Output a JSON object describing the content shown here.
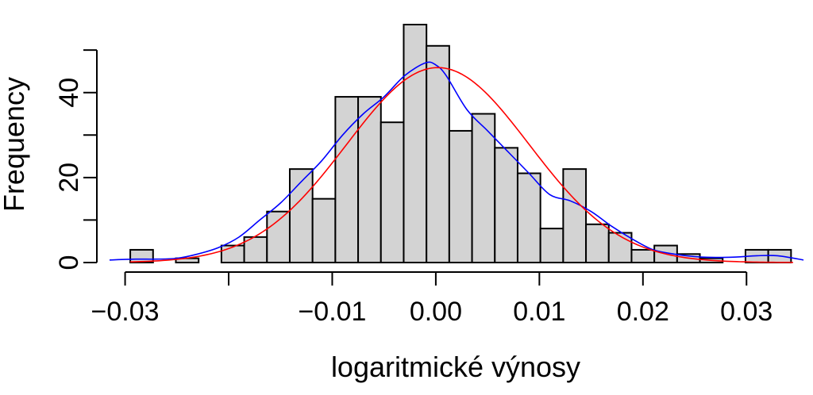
{
  "chart_data": {
    "type": "bar",
    "title": "",
    "xlabel": "logaritmické výnosy",
    "ylabel": "Frequency",
    "xlim": [
      -0.0315,
      0.0355
    ],
    "ylim": [
      0,
      56
    ],
    "x_ticks": [
      {
        "value": -0.03,
        "label": "−0.03"
      },
      {
        "value": -0.02,
        "label": ""
      },
      {
        "value": -0.01,
        "label": "−0.01"
      },
      {
        "value": 0.0,
        "label": "0.00"
      },
      {
        "value": 0.01,
        "label": "0.01"
      },
      {
        "value": 0.02,
        "label": "0.02"
      },
      {
        "value": 0.03,
        "label": "0.03"
      }
    ],
    "y_ticks": [
      {
        "value": 0,
        "label": "0"
      },
      {
        "value": 10,
        "label": ""
      },
      {
        "value": 20,
        "label": "20"
      },
      {
        "value": 30,
        "label": ""
      },
      {
        "value": 40,
        "label": "40"
      },
      {
        "value": 50,
        "label": ""
      }
    ],
    "bins": {
      "start": -0.0295,
      "width": 0.0022,
      "counts": [
        3,
        0,
        1,
        0,
        4,
        6,
        12,
        22,
        15,
        39,
        39,
        33,
        56,
        51,
        31,
        35,
        27,
        21,
        8,
        22,
        9,
        7,
        3,
        4,
        2,
        1,
        0,
        3,
        3
      ]
    },
    "bar_fill": "#d3d3d3",
    "bar_stroke": "#000000",
    "series": [
      {
        "type": "line",
        "color": "#0000ff",
        "x": [
          -0.0315,
          -0.029,
          -0.027,
          -0.025,
          -0.023,
          -0.021,
          -0.019,
          -0.017,
          -0.015,
          -0.013,
          -0.011,
          -0.009,
          -0.007,
          -0.005,
          -0.003,
          -0.001,
          0.0,
          0.001,
          0.003,
          0.005,
          0.007,
          0.009,
          0.011,
          0.013,
          0.015,
          0.017,
          0.019,
          0.021,
          0.023,
          0.025,
          0.027,
          0.029,
          0.031,
          0.033,
          0.0355
        ],
        "y": [
          0.6,
          0.8,
          0.8,
          1.0,
          2.0,
          3.5,
          6.0,
          10.0,
          14.0,
          19.0,
          24.0,
          30.0,
          35.0,
          39.0,
          44.0,
          47.0,
          46.5,
          44.0,
          36.0,
          31.0,
          26.0,
          21.0,
          16.0,
          14.5,
          12.0,
          8.5,
          5.5,
          3.0,
          2.0,
          1.4,
          1.2,
          1.3,
          1.6,
          1.6,
          0.6
        ]
      },
      {
        "type": "line",
        "color": "#ff0000",
        "normal": {
          "mean": 0.0002,
          "sd": 0.0088,
          "n": 460,
          "binwidth": 0.0022
        },
        "x_range": [
          -0.0295,
          0.0345
        ]
      }
    ]
  }
}
